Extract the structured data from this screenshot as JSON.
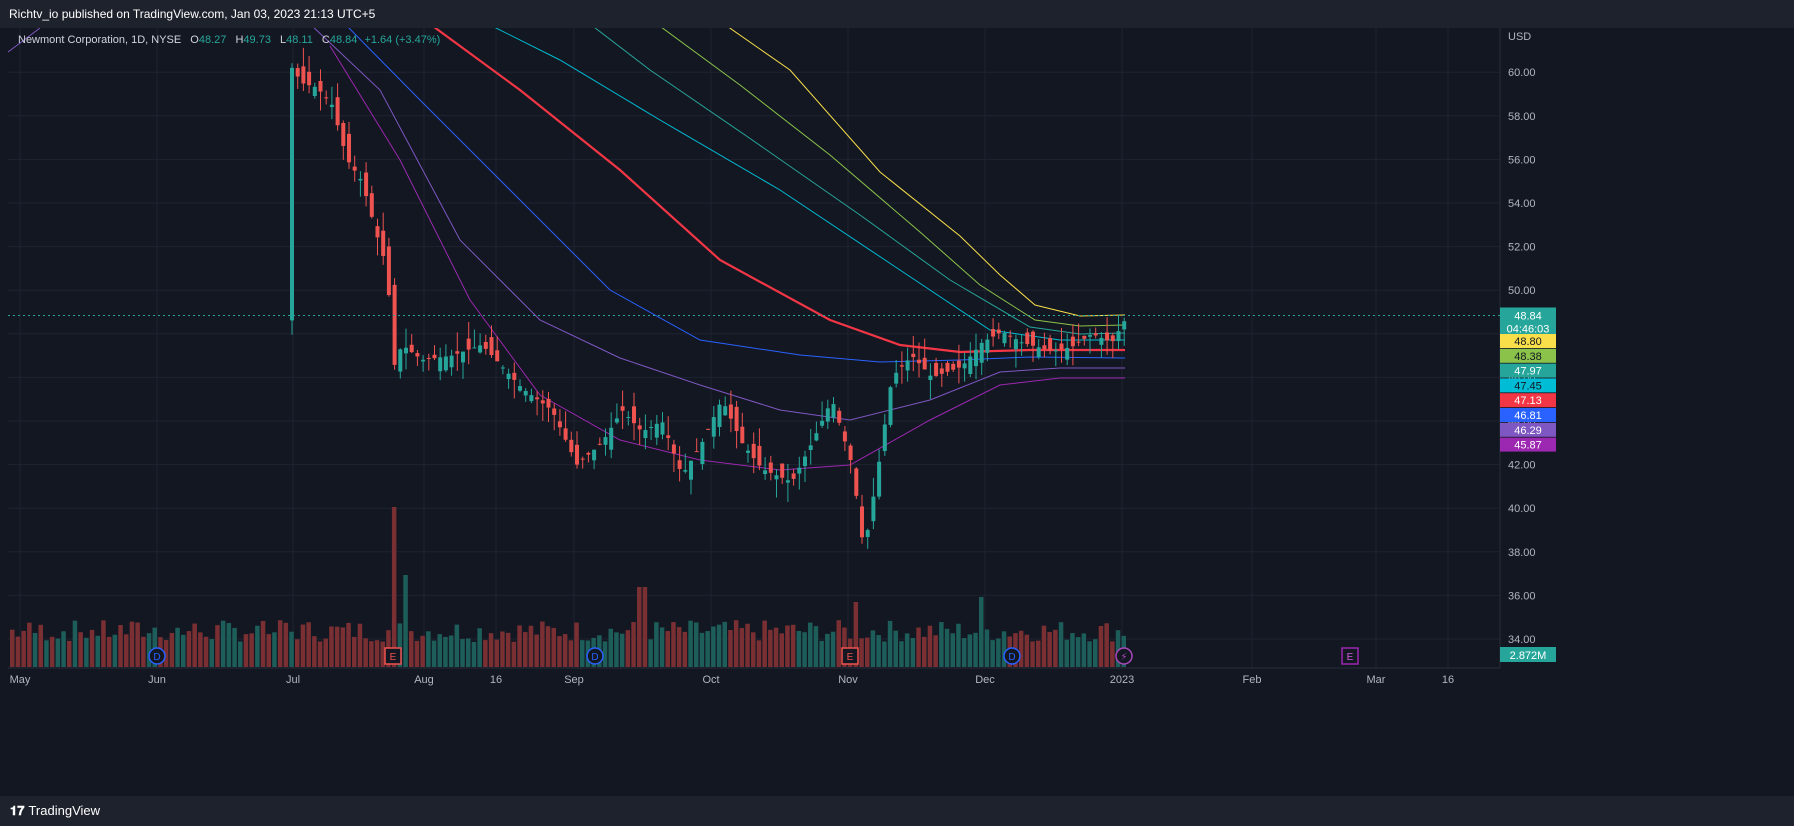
{
  "header": {
    "publisher": "Richtv_io published on TradingView.com, Jan 03, 2023 21:13 UTC+5"
  },
  "legend": {
    "symbol": "Newmont Corporation, 1D, NYSE",
    "open_label": "O",
    "open": "48.27",
    "high_label": "H",
    "high": "49.73",
    "low_label": "L",
    "low": "48.11",
    "close_label": "C",
    "close": "48.84",
    "change": "+1.64 (+3.47%)"
  },
  "footer": {
    "brand": "TradingView"
  },
  "colors": {
    "up": "#26a69a",
    "down": "#ef5350",
    "background": "#131722",
    "grid": "#1f2330"
  },
  "chart_data": {
    "type": "candlestick",
    "currency": "USD",
    "y_axis_ticks": [
      34,
      36,
      38,
      40,
      42,
      44,
      46,
      48,
      50,
      52,
      54,
      56,
      58,
      60
    ],
    "ylim": [
      33,
      62
    ],
    "x_axis_labels": [
      "May",
      "Jun",
      "Jul",
      "Aug",
      "16",
      "Sep",
      "Oct",
      "Nov",
      "Dec",
      "2023",
      "Feb",
      "Mar",
      "16"
    ],
    "last_price": "48.84",
    "countdown": "04:46:03",
    "ema_series": [
      {
        "color": "#f9e04b",
        "value": "48.80",
        "points": [
          [
            724,
            24
          ],
          [
            790,
            70
          ],
          [
            880,
            172
          ],
          [
            960,
            236
          ],
          [
            1000,
            275
          ],
          [
            1035,
            305
          ],
          [
            1080,
            316
          ],
          [
            1125,
            315
          ]
        ]
      },
      {
        "color": "#8bc34a",
        "value": "48.38",
        "points": [
          [
            657,
            24
          ],
          [
            740,
            85
          ],
          [
            830,
            155
          ],
          [
            920,
            232
          ],
          [
            980,
            285
          ],
          [
            1035,
            320
          ],
          [
            1080,
            326
          ],
          [
            1125,
            325
          ]
        ]
      },
      {
        "color": "#26a69a",
        "value": "47.97",
        "points": [
          [
            590,
            24
          ],
          [
            650,
            70
          ],
          [
            745,
            135
          ],
          [
            860,
            215
          ],
          [
            950,
            280
          ],
          [
            1030,
            327
          ],
          [
            1080,
            334
          ],
          [
            1125,
            333
          ]
        ]
      },
      {
        "color": "#00bcd4",
        "value": "47.45",
        "points": [
          [
            488,
            24
          ],
          [
            560,
            60
          ],
          [
            660,
            120
          ],
          [
            780,
            190
          ],
          [
            900,
            270
          ],
          [
            990,
            330
          ],
          [
            1060,
            340
          ],
          [
            1125,
            340
          ]
        ]
      },
      {
        "color": "#f23645",
        "value": "47.13",
        "points": [
          [
            430,
            24
          ],
          [
            520,
            90
          ],
          [
            620,
            170
          ],
          [
            720,
            260
          ],
          [
            830,
            320
          ],
          [
            900,
            345
          ],
          [
            960,
            352
          ],
          [
            1030,
            350
          ],
          [
            1080,
            350
          ],
          [
            1125,
            350
          ]
        ]
      },
      {
        "color": "#2962ff",
        "value": "46.81",
        "points": [
          [
            345,
            24
          ],
          [
            420,
            100
          ],
          [
            520,
            200
          ],
          [
            610,
            290
          ],
          [
            700,
            340
          ],
          [
            800,
            355
          ],
          [
            880,
            362
          ],
          [
            960,
            360
          ],
          [
            1030,
            357
          ],
          [
            1125,
            358
          ]
        ]
      },
      {
        "color": "#7e57c2",
        "value": "46.29",
        "points": [
          [
            310,
            24
          ],
          [
            380,
            90
          ],
          [
            460,
            240
          ],
          [
            540,
            320
          ],
          [
            620,
            358
          ],
          [
            700,
            385
          ],
          [
            780,
            410
          ],
          [
            850,
            420
          ],
          [
            930,
            400
          ],
          [
            1000,
            372
          ],
          [
            1060,
            368
          ],
          [
            1125,
            368
          ]
        ]
      },
      {
        "color": "#9c27b0",
        "value": "45.87",
        "points": [
          [
            330,
            46
          ],
          [
            400,
            160
          ],
          [
            470,
            300
          ],
          [
            540,
            395
          ],
          [
            620,
            440
          ],
          [
            700,
            460
          ],
          [
            780,
            470
          ],
          [
            850,
            465
          ],
          [
            930,
            420
          ],
          [
            1000,
            385
          ],
          [
            1060,
            378
          ],
          [
            1125,
            378
          ]
        ]
      }
    ],
    "volume": "2.872M",
    "event_markers": [
      "D",
      "E",
      "D",
      "E",
      "D",
      "E"
    ]
  }
}
